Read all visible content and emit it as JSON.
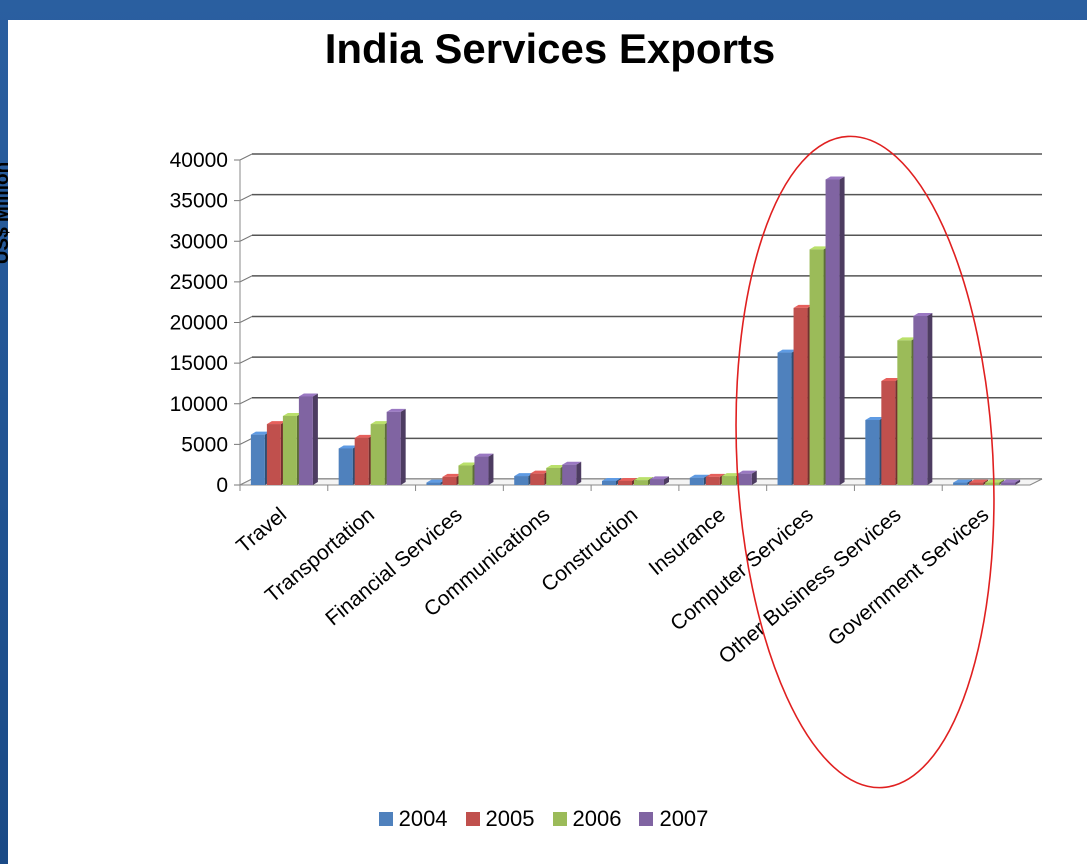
{
  "chart_data": {
    "type": "bar",
    "title": "India Services Exports",
    "xlabel": "",
    "ylabel": "US$ Million",
    "ylim": [
      0,
      40000
    ],
    "yticks": [
      0,
      5000,
      10000,
      15000,
      20000,
      25000,
      30000,
      35000,
      40000
    ],
    "categories": [
      "Travel",
      "Transportation",
      "Financial Services",
      "Communications",
      "Construction",
      "Insurance",
      "Computer Services",
      "Other Business Services",
      "Government Services"
    ],
    "series": [
      {
        "name": "2004",
        "color": "#4f81bd",
        "values": [
          6200,
          4500,
          300,
          1100,
          500,
          900,
          16300,
          8000,
          300
        ]
      },
      {
        "name": "2005",
        "color": "#c0504d",
        "values": [
          7500,
          5800,
          1000,
          1400,
          500,
          1000,
          21800,
          12800,
          300
        ]
      },
      {
        "name": "2006",
        "color": "#9bbb59",
        "values": [
          8500,
          7500,
          2400,
          2100,
          600,
          1100,
          29000,
          17800,
          300
        ]
      },
      {
        "name": "2007",
        "color": "#8064a2",
        "values": [
          10900,
          9000,
          3500,
          2500,
          700,
          1400,
          37600,
          20800,
          300
        ]
      }
    ],
    "grid": true,
    "legend_position": "bottom"
  }
}
